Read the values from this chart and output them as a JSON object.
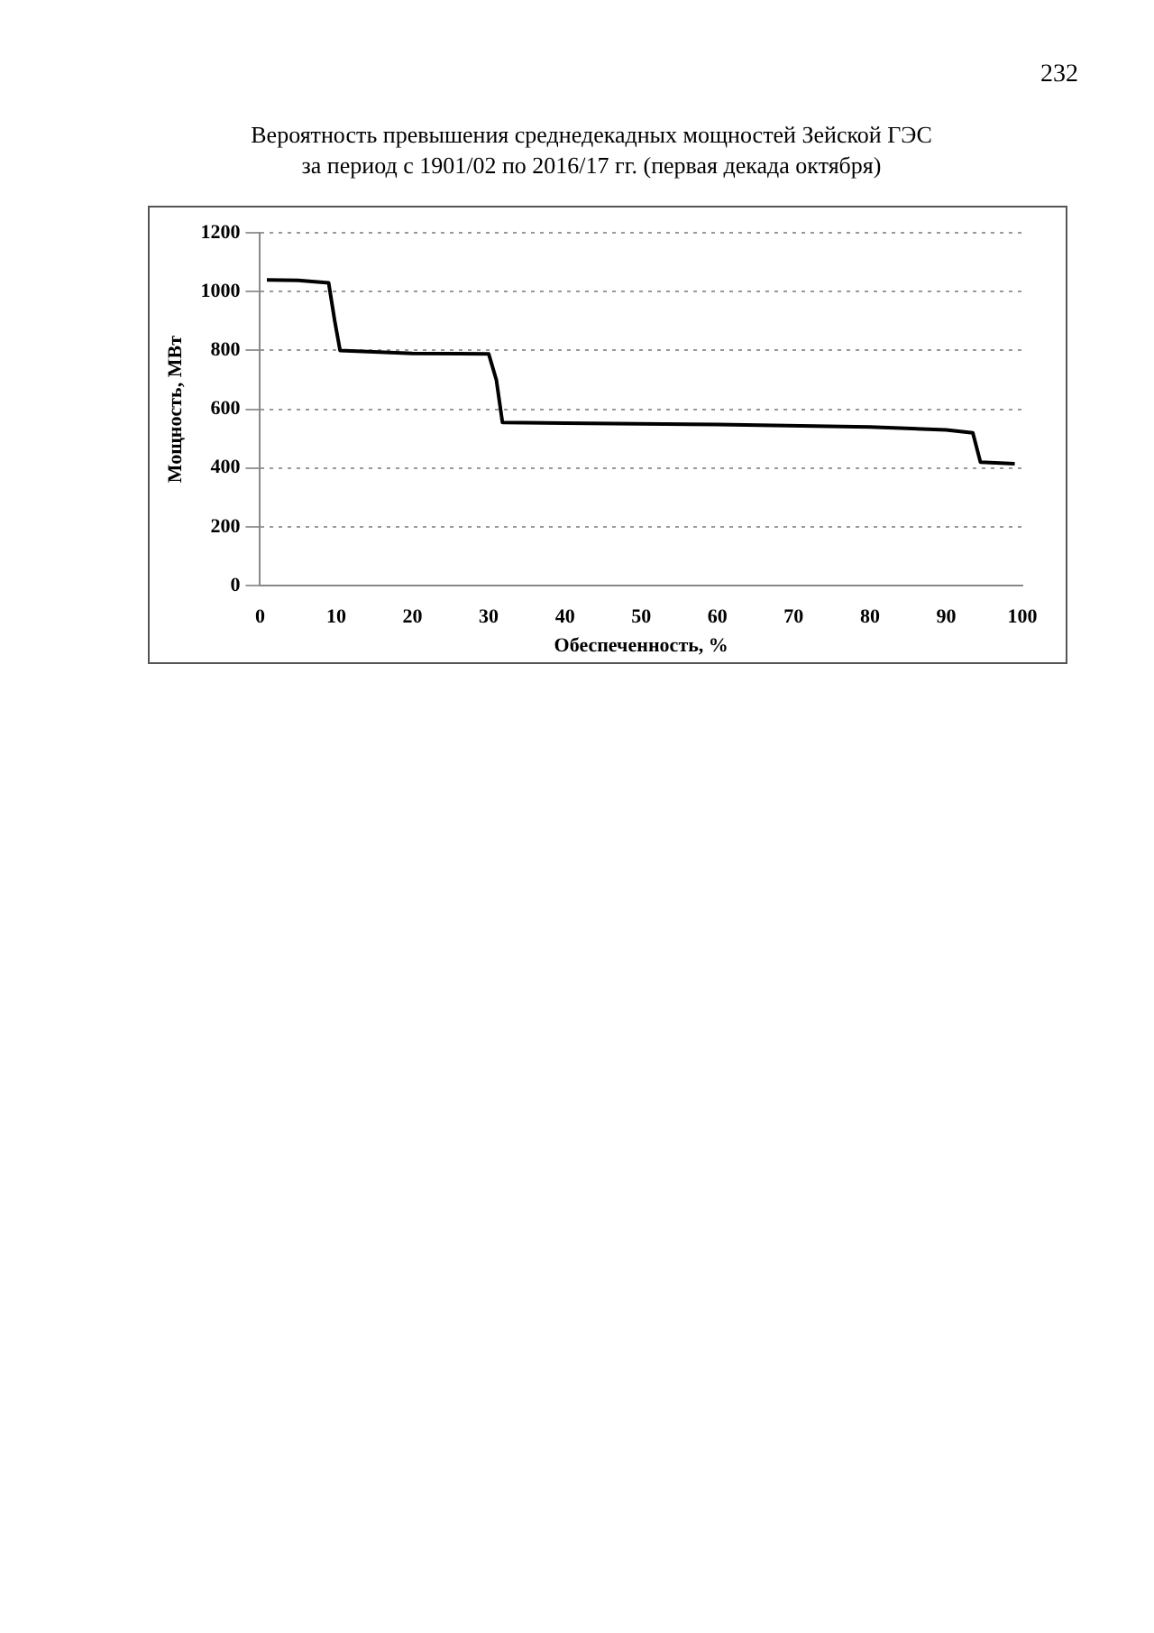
{
  "chart_data": {
    "type": "line",
    "title": "Вероятность превышения среднедекадных мощностей Зейской ГЭС\nза период с 1901/02 по 2016/17 гг. (первая декада октября)",
    "xlabel": "Обеспеченность, %",
    "ylabel": "Мощность, МВт",
    "annotations": [
      "232"
    ],
    "x": [
      0.9,
      5,
      9,
      9.8,
      10.5,
      20,
      30,
      31,
      31.8,
      40,
      60,
      80,
      90,
      93.5,
      94.5,
      99
    ],
    "values": [
      1040,
      1038,
      1030,
      900,
      800,
      790,
      788,
      700,
      555,
      553,
      548,
      540,
      530,
      520,
      420,
      415
    ],
    "color": "#000000",
    "xlim": [
      0,
      100
    ],
    "xticks": [
      0,
      10,
      20,
      30,
      40,
      50,
      60,
      70,
      80,
      90,
      100
    ],
    "ylim": [
      0,
      1200
    ],
    "yticks": [
      0,
      200,
      400,
      600,
      800,
      1000,
      1200
    ],
    "grid": "y",
    "line_style": "solid",
    "marker": "none",
    "legend": false
  }
}
